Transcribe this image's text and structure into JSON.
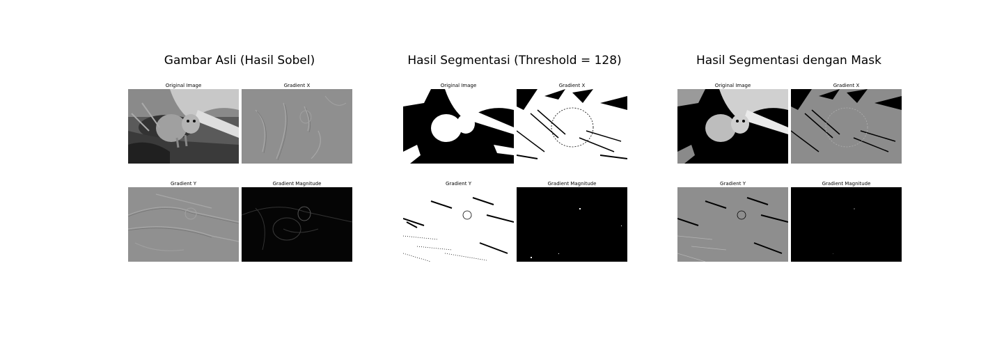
{
  "panels": [
    {
      "title": "Gambar Asli (Hasil Sobel)",
      "tiles": [
        {
          "label": "Original Image",
          "tone": "photo"
        },
        {
          "label": "Gradient X",
          "tone": "emboss"
        },
        {
          "label": "Gradient Y",
          "tone": "emboss"
        },
        {
          "label": "Gradient Magnitude",
          "tone": "dark-edges"
        }
      ]
    },
    {
      "title": "Hasil Segmentasi (Threshold = 128)",
      "tiles": [
        {
          "label": "Original Image",
          "tone": "binary"
        },
        {
          "label": "Gradient X",
          "tone": "binary-texture"
        },
        {
          "label": "Gradient Y",
          "tone": "binary-sparse"
        },
        {
          "label": "Gradient Magnitude",
          "tone": "black"
        }
      ]
    },
    {
      "title": "Hasil Segmentasi dengan Mask",
      "tiles": [
        {
          "label": "Original Image",
          "tone": "binary"
        },
        {
          "label": "Gradient X",
          "tone": "masked-texture"
        },
        {
          "label": "Gradient Y",
          "tone": "masked-emboss"
        },
        {
          "label": "Gradient Magnitude",
          "tone": "black"
        }
      ]
    }
  ]
}
